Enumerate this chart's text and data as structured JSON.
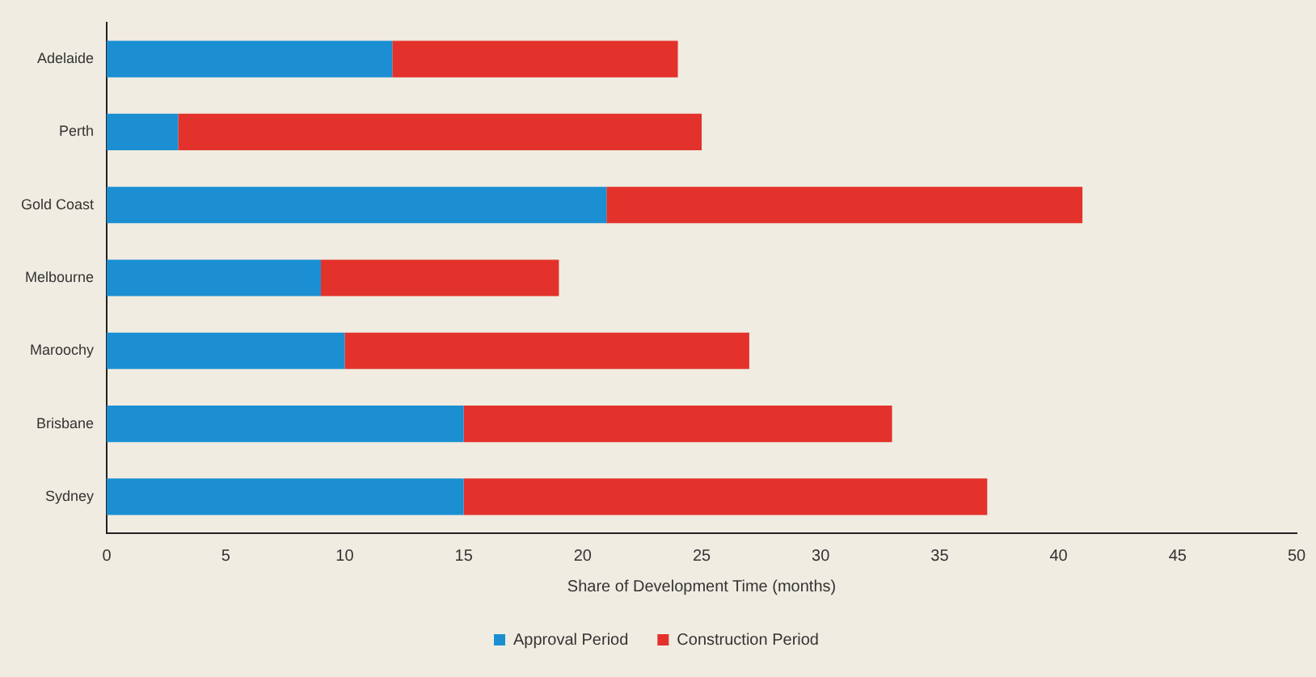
{
  "chart_data": {
    "type": "bar",
    "orientation": "horizontal",
    "stacked": true,
    "xlabel": "Share of Development Time (months)",
    "categories": [
      "Adelaide",
      "Perth",
      "Gold Coast",
      "Melbourne",
      "Maroochy",
      "Brisbane",
      "Sydney"
    ],
    "series": [
      {
        "name": "Approval Period",
        "color": "#1b8fd2",
        "values": [
          12,
          3,
          21,
          9,
          10,
          15,
          15
        ]
      },
      {
        "name": "Construction Period",
        "color": "#e3322b",
        "values": [
          12,
          22,
          20,
          10,
          17,
          18,
          22
        ]
      }
    ],
    "xlim": [
      0,
      50
    ],
    "xticks": [
      0,
      5,
      10,
      15,
      20,
      25,
      30,
      35,
      40,
      45,
      50
    ],
    "grid": false,
    "legend": "bottom"
  }
}
